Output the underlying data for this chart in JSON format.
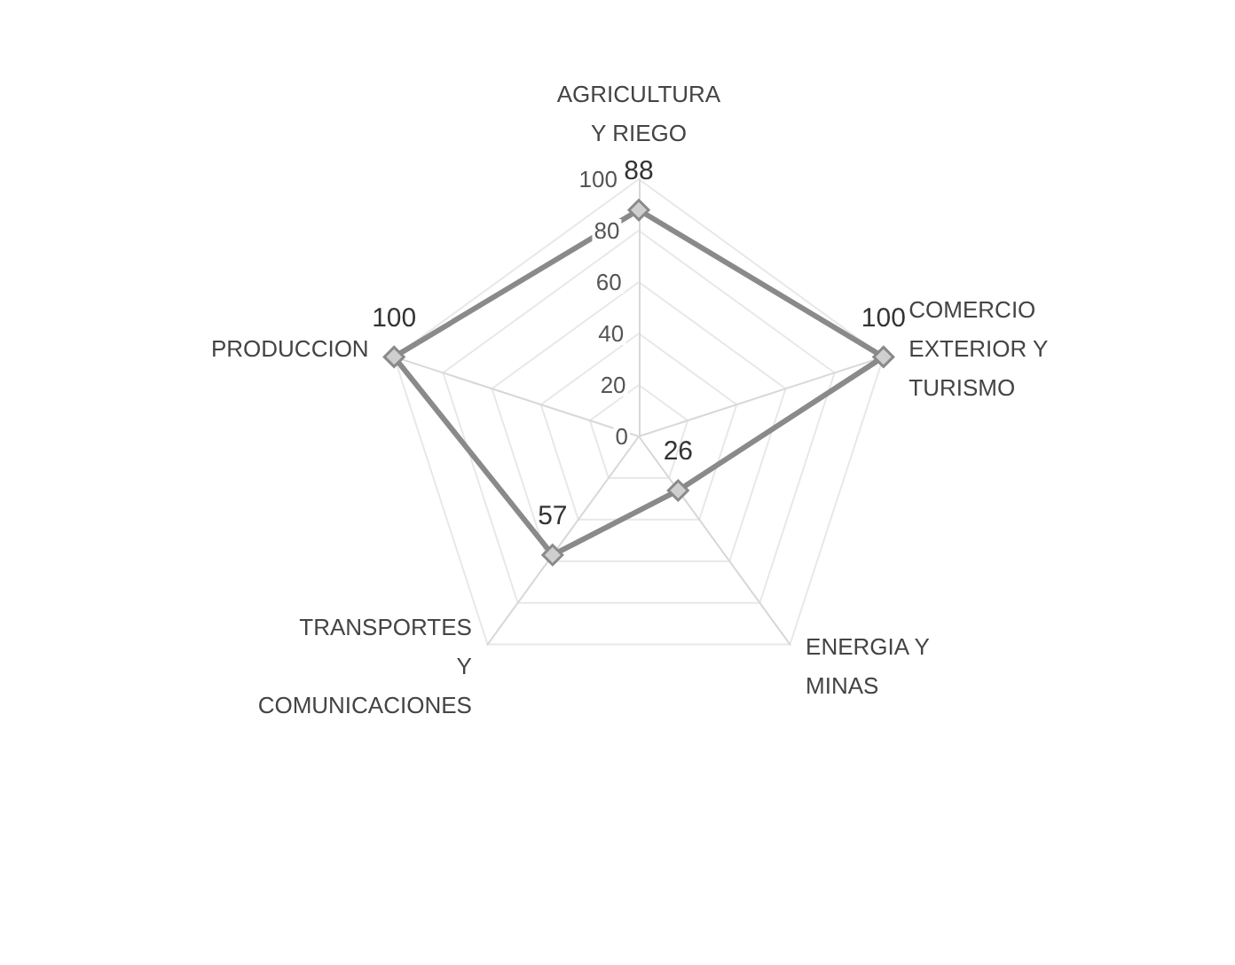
{
  "chart_data": {
    "type": "radar",
    "categories": [
      "AGRICULTURA\nY RIEGO",
      "COMERCIO\nEXTERIOR Y\nTURISMO",
      "ENERGIA Y\nMINAS",
      "TRANSPORTES\nY\nCOMUNICACIONES",
      "PRODUCCION"
    ],
    "series": [
      {
        "color": "#8a8a8a",
        "values": [
          88,
          100,
          26,
          57,
          100
        ]
      }
    ],
    "ylim": [
      0,
      100
    ],
    "yticks": [
      0,
      20,
      40,
      60,
      80,
      100
    ],
    "grid": true,
    "marker": "diamond",
    "data_labels": true
  }
}
